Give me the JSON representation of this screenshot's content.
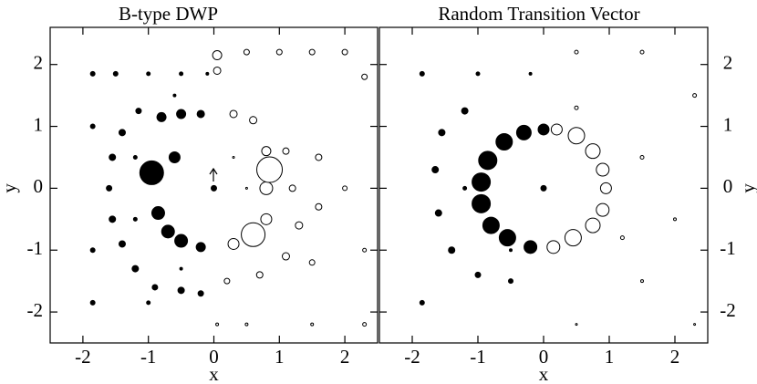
{
  "chart_data": [
    {
      "type": "bubble",
      "title": "B-type DWP",
      "x_label": "x",
      "y_label": "y",
      "y_axis_side": "left",
      "xlim": [
        -2.5,
        2.5
      ],
      "ylim": [
        -2.5,
        2.6
      ],
      "xticks": [
        -2,
        -1,
        0,
        1,
        2
      ],
      "yticks": [
        -2,
        -1,
        0,
        1,
        2
      ],
      "series": [
        {
          "color": "#000000",
          "marker": "filled",
          "x": [
            -1.6,
            -1.55,
            -1.4,
            -1.15,
            -1.55,
            -1.4,
            -1.2,
            -0.9,
            -0.5,
            -0.2,
            -1.85,
            -1.5,
            -1.0,
            -0.5,
            -0.1,
            -1.85,
            -1.85,
            -1.85,
            -1.0,
            -0.5,
            -0.6,
            -1.2,
            -1.2,
            -0.8,
            -0.5,
            -0.2,
            -0.6,
            -0.95,
            -0.85,
            -0.7,
            -0.5,
            -0.2,
            0
          ],
          "y": [
            0,
            0.5,
            0.9,
            1.25,
            -0.5,
            -0.9,
            -1.3,
            -1.6,
            -1.65,
            -1.7,
            1.85,
            1.85,
            1.85,
            1.85,
            1.85,
            1.0,
            -1.0,
            -1.85,
            -1.85,
            -1.3,
            1.5,
            0.5,
            -0.5,
            1.15,
            1.2,
            1.2,
            0.5,
            0.25,
            -0.4,
            -0.7,
            -0.85,
            -0.95,
            0
          ],
          "sizes": [
            3,
            3.5,
            3.5,
            3,
            3.5,
            3.5,
            3.5,
            3,
            3.5,
            3,
            2.5,
            2.5,
            2,
            2,
            1.5,
            2.5,
            2.5,
            2.5,
            2,
            1.5,
            1.5,
            2,
            2,
            5,
            5,
            4,
            6,
            13,
            7,
            7,
            7,
            5,
            3
          ]
        },
        {
          "color": "#000000",
          "marker": "open",
          "x": [
            0.05,
            0.05,
            0.5,
            1.0,
            1.5,
            2.0,
            2.3,
            0.3,
            0.6,
            0.8,
            0.85,
            0.8,
            0.8,
            0.6,
            0.3,
            1.1,
            1.2,
            1.3,
            1.1,
            0.7,
            0.2,
            1.6,
            1.6,
            1.5,
            2.0,
            2.3,
            2.3,
            1.5,
            0.5,
            0.05,
            0.5,
            0.3
          ],
          "y": [
            2.15,
            1.9,
            2.2,
            2.2,
            2.2,
            2.2,
            1.8,
            1.2,
            1.1,
            0.6,
            0.3,
            0,
            -0.5,
            -0.75,
            -0.9,
            0.6,
            0,
            -0.6,
            -1.1,
            -1.4,
            -1.5,
            0.5,
            -0.3,
            -1.2,
            0,
            -1.0,
            -2.2,
            -2.2,
            -2.2,
            -2.2,
            0,
            0.5
          ],
          "sizes": [
            5,
            4,
            3,
            3,
            3,
            3,
            3,
            4,
            4,
            5,
            14,
            7,
            6,
            13,
            6,
            3.5,
            3.5,
            4,
            4,
            3.5,
            3,
            3.5,
            3.5,
            3,
            2.5,
            2,
            2,
            1.5,
            1.5,
            1.5,
            1,
            1
          ]
        }
      ]
    },
    {
      "type": "bubble",
      "title": "Random Transition Vector",
      "x_label": "x",
      "y_label": "y",
      "y_axis_side": "right",
      "xlim": [
        -2.5,
        2.5
      ],
      "ylim": [
        -2.5,
        2.6
      ],
      "xticks": [
        -2,
        -1,
        0,
        1,
        2
      ],
      "yticks": [
        -2,
        -1,
        0,
        1,
        2
      ],
      "series": [
        {
          "color": "#000000",
          "marker": "filled",
          "x": [
            0,
            -0.3,
            -0.6,
            -0.85,
            -0.95,
            -0.95,
            -0.8,
            -0.55,
            -0.2,
            0,
            -1.55,
            -1.2,
            -1.65,
            -1.6,
            -1.4,
            -1.0,
            -0.5,
            -1.85,
            -1.0,
            -0.2,
            -1.85,
            -0.5,
            -1.2
          ],
          "y": [
            0.95,
            0.9,
            0.75,
            0.45,
            0.1,
            -0.25,
            -0.6,
            -0.8,
            -0.95,
            0,
            0.9,
            1.25,
            0.3,
            -0.4,
            -1.0,
            -1.4,
            -1.5,
            1.85,
            1.85,
            1.85,
            -1.85,
            -1.0,
            0
          ],
          "sizes": [
            6,
            8,
            9,
            10,
            10,
            10,
            9,
            9,
            7,
            3,
            3.5,
            3.5,
            3.5,
            3.5,
            3.5,
            3,
            2.5,
            2.5,
            2,
            1.5,
            2.5,
            1.5,
            2
          ]
        },
        {
          "color": "#000000",
          "marker": "open",
          "x": [
            0.2,
            0.5,
            0.75,
            0.9,
            0.95,
            0.9,
            0.75,
            0.45,
            0.15,
            0.5,
            1.5,
            2.3,
            1.5,
            2.0,
            1.5,
            0.5,
            2.3,
            1.2,
            0.5
          ],
          "y": [
            0.95,
            0.85,
            0.6,
            0.3,
            0,
            -0.35,
            -0.6,
            -0.8,
            -0.95,
            2.2,
            2.2,
            1.5,
            0.5,
            -0.5,
            -1.5,
            -2.2,
            -2.2,
            -0.8,
            1.3
          ],
          "sizes": [
            6,
            9,
            8,
            7,
            6,
            7,
            8,
            9,
            7,
            2,
            2,
            2,
            2,
            1.5,
            1.5,
            1,
            1,
            2,
            2
          ]
        }
      ]
    }
  ]
}
